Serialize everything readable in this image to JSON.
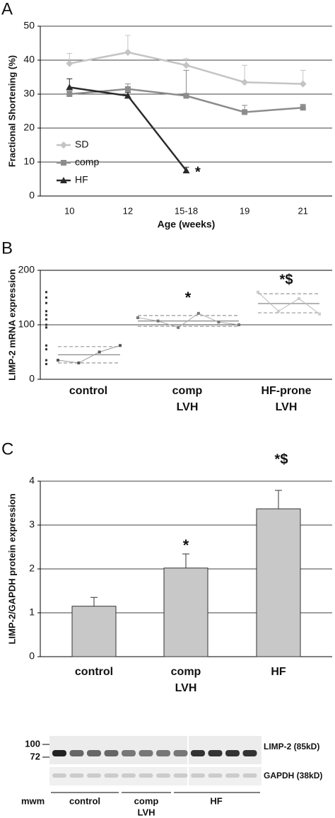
{
  "chart_data": [
    {
      "type": "line",
      "panel": "A",
      "categories": [
        "10",
        "12",
        "15-18",
        "19",
        "21"
      ],
      "xlabel": "Age (weeks)",
      "ylabel": "Fractional Shortening (%)",
      "ylim": [
        0,
        50
      ],
      "yticks": [
        0,
        10,
        20,
        30,
        40,
        50
      ],
      "grid": true,
      "series": [
        {
          "name": "SD",
          "color": "#c4c4c4",
          "marker": "diamond",
          "values": [
            39,
            42.3,
            38.5,
            33.5,
            33
          ],
          "errors": [
            3,
            5,
            2,
            5,
            4
          ]
        },
        {
          "name": "comp",
          "color": "#8c8c8c",
          "marker": "square",
          "values": [
            30,
            31.5,
            29.5,
            24.7,
            26
          ],
          "errors": [
            1,
            1.5,
            7.5,
            2,
            1
          ]
        },
        {
          "name": "HF",
          "color": "#2a2a2a",
          "marker": "triangle",
          "values": [
            32,
            29.5,
            7.5,
            null,
            null
          ],
          "errors": [
            2.5,
            1,
            1,
            null,
            null
          ]
        }
      ],
      "annotations": [
        "*"
      ]
    },
    {
      "type": "strip",
      "panel": "B",
      "ylabel": "LIMP-2 mRNA expression",
      "ylim": [
        0,
        200
      ],
      "yticks": [
        0,
        100,
        200
      ],
      "grid": true,
      "reference_values": [
        160,
        150,
        140,
        125,
        118,
        110,
        100,
        95,
        62,
        55,
        35,
        28
      ],
      "groups": [
        {
          "category": [
            "control"
          ],
          "values": [
            35,
            30,
            50,
            62
          ],
          "mean": 45,
          "range": [
            30,
            60
          ]
        },
        {
          "category": [
            "comp",
            "LVH"
          ],
          "values": [
            113,
            107,
            95,
            121,
            105,
            100
          ],
          "mean": 107,
          "range": [
            97,
            117
          ]
        },
        {
          "category": [
            "HF-prone",
            "LVH"
          ],
          "values": [
            160,
            125,
            148,
            120
          ],
          "mean": 139,
          "range": [
            122,
            157
          ]
        }
      ],
      "annotations": [
        "*",
        "*$"
      ]
    },
    {
      "type": "bar",
      "panel": "C",
      "ylabel": "LIMP-2/GAPDH protein expression",
      "categories": [
        [
          "control"
        ],
        [
          "comp",
          "LVH"
        ],
        [
          "HF"
        ]
      ],
      "values": [
        1.15,
        2.02,
        3.37
      ],
      "errors": [
        0.2,
        0.32,
        0.42
      ],
      "color": "#c8c8c8",
      "ylim": [
        0,
        4
      ],
      "yticks": [
        0,
        1,
        2,
        3,
        4
      ],
      "grid": true,
      "annotations": [
        "*",
        "*$"
      ]
    }
  ],
  "blot": {
    "markers": [
      "100",
      "72"
    ],
    "bands": [
      "LIMP-2 (85kD)",
      "GAPDH (38kD)"
    ],
    "lanes_label": "mwm",
    "groups": [
      [
        "control"
      ],
      [
        "comp",
        "LVH"
      ],
      [
        "HF"
      ]
    ]
  }
}
